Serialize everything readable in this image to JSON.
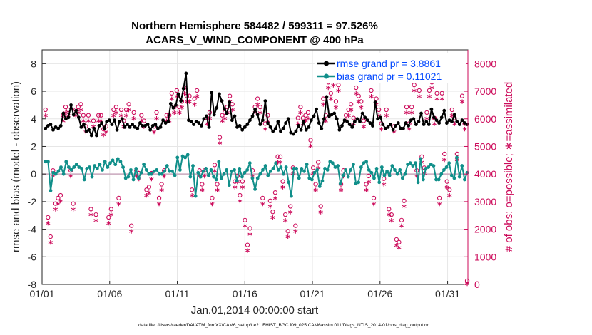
{
  "chart_data": {
    "type": "line",
    "title": "Northern Hemisphere 584482 / 599311 = 97.526%",
    "subtitle": "ACARS_V_WIND_COMPONENT @ 400 hPa",
    "xlabel": "Jan.01,2014 00:00:00 start",
    "ylabel_left": "rmse and bias (model - observation)",
    "ylabel_right": "# of obs: o=possible; ∗=assimilated",
    "footnote": "data file: /Users/raeder/DAI/ATM_forcXX/CAM6_setup/f.e21.FHIST_BGC.f09_025.CAM6assim.011/Diags_NTrS_2014-01/obs_diag_output.nc",
    "xlim": [
      0,
      31.5
    ],
    "ylim_left": [
      -8,
      9
    ],
    "ylim_right": [
      0,
      8500
    ],
    "grid": true,
    "legend_position": "top-right",
    "x_ticks": [
      0,
      5,
      10,
      15,
      20,
      25,
      30
    ],
    "x_tick_labels": [
      "01/01",
      "01/06",
      "01/11",
      "01/16",
      "01/21",
      "01/26",
      "01/31"
    ],
    "y_ticks_left": [
      -8,
      -6,
      -4,
      -2,
      0,
      2,
      4,
      6,
      8
    ],
    "y_ticks_right": [
      0,
      1000,
      2000,
      3000,
      4000,
      5000,
      6000,
      7000,
      8000
    ],
    "series": [
      {
        "name": "rmse grand pr = 3.8861",
        "color": "#000000",
        "axis": "left",
        "marker": "dot",
        "values": [
          3.3,
          3.5,
          3.6,
          3.2,
          3.4,
          3.3,
          3.5,
          4.4,
          4.0,
          4.1,
          5.0,
          4.3,
          4.6,
          4.1,
          3.4,
          3.6,
          3.1,
          3.2,
          2.8,
          3.3,
          2.8,
          3.5,
          3.7,
          3.3,
          3.8,
          3.9,
          3.6,
          3.9,
          3.2,
          3.8,
          4.0,
          3.4,
          3.6,
          3.4,
          3.6,
          3.4,
          3.3,
          3.7,
          3.5,
          3.5,
          3.6,
          3.2,
          3.5,
          3.6,
          3.3,
          3.4,
          3.9,
          3.7,
          3.8,
          5.1,
          4.8,
          5.0,
          5.8,
          5.3,
          6.2,
          7.3,
          3.9,
          3.8,
          3.6,
          3.8,
          3.7,
          3.5,
          4.0,
          4.2,
          3.4,
          5.9,
          4.3,
          4.8,
          5.8,
          5.3,
          4.7,
          4.4,
          5.2,
          3.9,
          4.2,
          3.4,
          3.5,
          3.2,
          3.4,
          3.6,
          3.9,
          4.2,
          4.7,
          4.3,
          3.6,
          3.9,
          5.3,
          3.7,
          3.4,
          3.1,
          3.3,
          3.8,
          3.1,
          3.3,
          3.7,
          4.0,
          3.0,
          2.9,
          3.1,
          3.5,
          3.2,
          3.8,
          3.2,
          3.4,
          3.9,
          4.2,
          4.7,
          3.7,
          3.3,
          4.0,
          5.6,
          4.2,
          4.3,
          4.4,
          4.0,
          3.2,
          3.5,
          3.9,
          3.8,
          3.6,
          3.4,
          3.8,
          4.0,
          3.8,
          4.4,
          4.1,
          3.9,
          3.7,
          3.5,
          5.2,
          4.0,
          4.1,
          3.6,
          3.3,
          3.4,
          3.6,
          3.2,
          3.5,
          3.7,
          3.3,
          3.3,
          3.7,
          3.5,
          3.9,
          4.0,
          3.6,
          3.8,
          4.4,
          3.6,
          3.8,
          3.6,
          4.7,
          4.1,
          3.9,
          3.7,
          4.1,
          4.6,
          3.7,
          3.9,
          3.8,
          4.3,
          3.8,
          3.6,
          3.9,
          3.7,
          3.6
        ]
      },
      {
        "name": "bias grand pr = 0.11021",
        "color": "#108f8a",
        "axis": "left",
        "marker": "dot",
        "values": [
          0.9,
          0.9,
          -1.2,
          0.1,
          0.0,
          0.2,
          0.5,
          0.0,
          0.9,
          0.5,
          0.3,
          0.5,
          0.7,
          0.5,
          0.4,
          -0.4,
          0.4,
          0.5,
          -0.2,
          0.6,
          0.4,
          0.7,
          0.3,
          0.9,
          0.5,
          0.8,
          1.0,
          0.7,
          1.1,
          0.9,
          0.5,
          -0.3,
          -0.2,
          0.3,
          -0.4,
          0.4,
          -0.3,
          0.1,
          0.7,
          0.3,
          0.0,
          0.0,
          0.2,
          0.3,
          0.0,
          0.0,
          0.2,
          0.6,
          0.2,
          0.2,
          -0.1,
          1.2,
          0.3,
          1.3,
          1.2,
          1.4,
          -0.2,
          0.6,
          -1.6,
          0.1,
          -0.2,
          0.2,
          0.4,
          -0.1,
          0.3,
          -0.2,
          -0.4,
          0.9,
          -0.3,
          0.0,
          0.3,
          -0.8,
          0.2,
          0.3,
          -0.5,
          0.4,
          -0.2,
          0.1,
          0.3,
          0.8,
          -0.3,
          -1.1,
          -0.3,
          0.0,
          0.3,
          0.6,
          -0.1,
          0.2,
          0.4,
          0.8,
          0.3,
          0.5,
          0.0,
          0.5,
          -0.6,
          -1.6,
          0.4,
          0.4,
          -0.3,
          0.4,
          0.2,
          0.7,
          -0.3,
          -0.4,
          0.1,
          0.3,
          -0.9,
          -0.5,
          0.4,
          0.3,
          0.9,
          0.8,
          0.5,
          0.6,
          -0.7,
          -0.1,
          0.3,
          -0.2,
          0.3,
          0.7,
          -0.7,
          -0.6,
          0.5,
          0.8,
          0.9,
          0.3,
          0.1,
          -0.3,
          0.4,
          -0.6,
          0.5,
          -0.1,
          0.2,
          -0.1,
          0.6,
          0.3,
          0.0,
          0.3,
          -0.3,
          0.0,
          0.7,
          0.8,
          0.6,
          0.8,
          -0.6,
          1.1,
          -0.4,
          0.4,
          0.5,
          0.7,
          0.6,
          -0.4,
          -0.4,
          0.0,
          0.3,
          0.5,
          0.8,
          -0.1,
          -0.3,
          1.2,
          -0.2,
          0.6,
          -0.4,
          0.1
        ]
      },
      {
        "name": "# of obs possible (o)",
        "color": "#cc0a5a",
        "axis": "right",
        "marker": "circle",
        "values": [
          6200,
          2300,
          1600,
          4000,
          2800,
          3000,
          3100,
          6000,
          6300,
          6200,
          4000,
          2800,
          6200,
          6300,
          6400,
          6000,
          5600,
          6000,
          2600,
          5800,
          2400,
          6000,
          6000,
          5500,
          5600,
          2300,
          2600,
          6200,
          6300,
          3000,
          6200,
          5800,
          6200,
          6400,
          2000,
          6100,
          4000,
          3900,
          6000,
          5800,
          3300,
          3400,
          3900,
          5600,
          6100,
          3000,
          3500,
          4000,
          6000,
          6000,
          6800,
          6300,
          6900,
          6300,
          6500,
          7000,
          6700,
          6700,
          3300,
          6600,
          6900,
          4000,
          3500,
          4000,
          5900,
          6100,
          3000,
          4200,
          3500,
          5200,
          6000,
          6100,
          6300,
          6700,
          6400,
          3600,
          3800,
          3100,
          3600,
          2200,
          1300,
          1900,
          4000,
          6300,
          6600,
          6300,
          3000,
          5700,
          6000,
          2900,
          2500,
          3200,
          4500,
          4500,
          3600,
          2400,
          1800,
          2700,
          4100,
          2000,
          5900,
          6300,
          5900,
          6000,
          6100,
          5100,
          4100,
          3500,
          4300,
          2700,
          6600,
          6000,
          7200,
          6800,
          7300,
          6500,
          7100,
          3500,
          4000,
          6000,
          6200,
          6400,
          5900,
          7000,
          6700,
          6500,
          5800,
          3500,
          3800,
          6900,
          3000,
          6600,
          6200,
          5700,
          3700,
          6200,
          2600,
          2400,
          5600,
          1500,
          1400,
          2200,
          2900,
          6300,
          5700,
          6300,
          7100,
          4000,
          6900,
          4500,
          4100,
          6100,
          6900,
          7200,
          5900,
          6800,
          3000,
          6800,
          4600,
          3600,
          3300,
          6200,
          5900,
          4600,
          7700,
          6700,
          5700,
          0
        ]
      },
      {
        "name": "# of obs assimilated (∗)",
        "color": "#cc0a5a",
        "axis": "right",
        "marker": "asterisk",
        "values": [
          6100,
          2200,
          1500,
          3900,
          2700,
          2900,
          3000,
          5900,
          6200,
          6100,
          3900,
          2700,
          6100,
          6200,
          6300,
          5900,
          5500,
          5900,
          2500,
          5700,
          2300,
          5900,
          5900,
          5400,
          5500,
          2200,
          2500,
          6100,
          6200,
          2900,
          6100,
          5700,
          6100,
          6300,
          1900,
          6000,
          3900,
          3800,
          5900,
          5700,
          3200,
          3300,
          3800,
          5500,
          6000,
          2900,
          3400,
          3900,
          5900,
          5900,
          6700,
          6200,
          6800,
          6200,
          6400,
          6900,
          6600,
          6600,
          3200,
          6500,
          6800,
          3900,
          3400,
          3900,
          5800,
          6000,
          2900,
          4100,
          3400,
          5100,
          5900,
          6000,
          6200,
          6600,
          6300,
          3500,
          3700,
          3000,
          3500,
          2100,
          1200,
          1800,
          3900,
          6200,
          6500,
          6200,
          2900,
          5600,
          5900,
          2800,
          2400,
          3100,
          4400,
          4400,
          3500,
          2300,
          1700,
          2600,
          4000,
          1900,
          5800,
          6200,
          5800,
          5900,
          6000,
          5000,
          4000,
          3400,
          4200,
          2600,
          6500,
          5900,
          7100,
          6700,
          7200,
          6400,
          7000,
          3400,
          3900,
          5900,
          6100,
          6300,
          5800,
          6900,
          6600,
          6400,
          5700,
          3400,
          3700,
          6800,
          2900,
          6500,
          6100,
          5600,
          3600,
          6100,
          2500,
          2300,
          5500,
          1400,
          1300,
          2100,
          2800,
          6200,
          5600,
          6200,
          7000,
          3900,
          6800,
          4400,
          4000,
          6000,
          6800,
          7100,
          5800,
          6700,
          2900,
          6700,
          4500,
          3500,
          3200,
          6100,
          5800,
          4500,
          7600,
          6600,
          5600,
          0
        ]
      }
    ]
  }
}
